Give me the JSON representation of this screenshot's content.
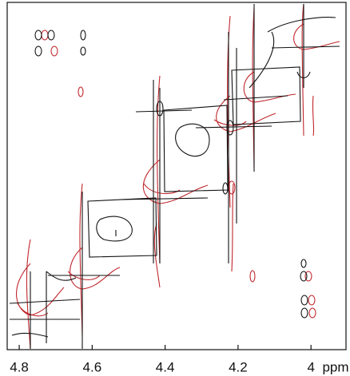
{
  "chart_data": {
    "type": "contour",
    "xlabel": "ppm",
    "xlim": [
      4.833,
      3.904
    ],
    "xticks": [
      4.8,
      4.6,
      4.4,
      4.2,
      4.0
    ]
  }
}
